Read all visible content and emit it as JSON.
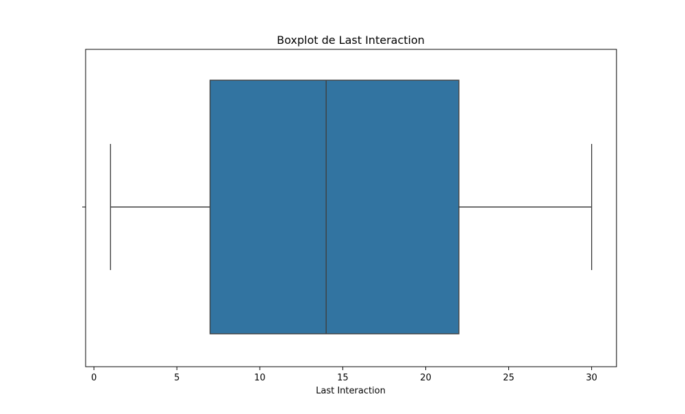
{
  "chart_data": {
    "type": "boxplot",
    "title": "Boxplot de Last Interaction",
    "xlabel": "Last Interaction",
    "ylabel": "",
    "xlim": [
      -0.5,
      31.5
    ],
    "xticks": [
      0,
      5,
      10,
      15,
      20,
      25,
      30
    ],
    "xtick_labels": [
      "0",
      "5",
      "10",
      "15",
      "20",
      "25",
      "30"
    ],
    "grid": false,
    "orientation": "horizontal",
    "box": {
      "whisker_low": 1,
      "q1": 7,
      "median": 14,
      "q3": 22,
      "whisker_high": 30
    },
    "box_color": "#3274a1",
    "line_color": "#3f3f3f"
  }
}
